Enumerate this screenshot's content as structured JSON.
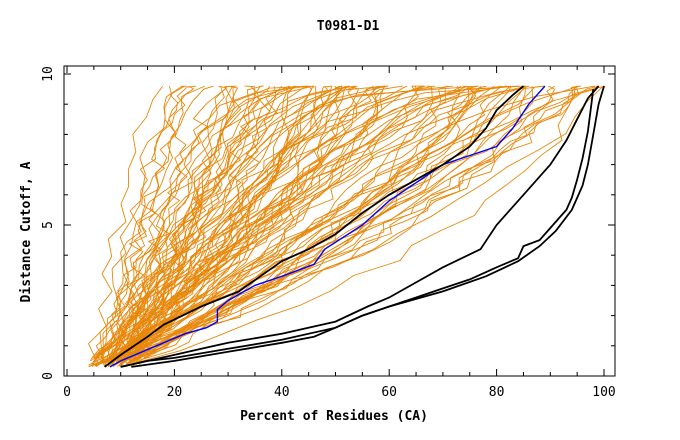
{
  "chart_data": {
    "type": "line",
    "title": "T0981-D1",
    "xlabel": "Percent of Residues (CA)",
    "ylabel": "Distance Cutoff, A",
    "xlim": [
      0,
      100
    ],
    "ylim": [
      0,
      10
    ],
    "xticks": [
      0,
      20,
      40,
      60,
      80,
      100
    ],
    "yticks": [
      0,
      5,
      10
    ],
    "grid": false,
    "legend": "none",
    "colors": {
      "background_series": "#e8880c",
      "highlight_black": "#000000",
      "highlight_blue": "#0000ff",
      "axis": "#000000"
    },
    "series": [
      {
        "color": "#0000ff",
        "x": [
          8,
          10,
          14,
          18,
          22,
          26,
          28,
          28,
          30,
          35,
          40,
          46,
          48,
          55,
          60,
          65,
          70,
          75,
          80,
          83,
          86,
          89
        ],
        "y": [
          0.3,
          0.5,
          0.8,
          1.1,
          1.4,
          1.6,
          1.8,
          2.2,
          2.5,
          3.0,
          3.3,
          3.7,
          4.2,
          5.0,
          5.8,
          6.4,
          7.0,
          7.3,
          7.6,
          8.2,
          9.0,
          9.6
        ]
      },
      {
        "color": "#000000",
        "x": [
          7,
          10,
          15,
          18,
          25,
          32,
          36,
          40,
          45,
          50,
          55,
          60,
          65,
          70,
          75,
          78,
          80,
          83,
          85
        ],
        "y": [
          0.3,
          0.7,
          1.3,
          1.7,
          2.3,
          2.8,
          3.3,
          3.8,
          4.2,
          4.7,
          5.4,
          6.0,
          6.5,
          7.0,
          7.6,
          8.2,
          8.8,
          9.3,
          9.6
        ]
      },
      {
        "color": "#000000",
        "x": [
          10,
          15,
          20,
          25,
          30,
          40,
          50,
          56,
          60,
          65,
          70,
          77,
          80,
          85,
          90,
          93,
          95,
          97,
          99
        ],
        "y": [
          0.3,
          0.5,
          0.7,
          0.9,
          1.1,
          1.4,
          1.8,
          2.3,
          2.6,
          3.1,
          3.6,
          4.2,
          5.0,
          6.0,
          7.0,
          7.8,
          8.5,
          9.2,
          9.6
        ]
      },
      {
        "color": "#000000",
        "x": [
          10,
          15,
          20,
          30,
          40,
          50,
          55,
          60,
          65,
          70,
          75,
          80,
          84,
          85,
          88,
          90,
          92,
          93,
          94,
          95,
          96,
          97,
          98
        ],
        "y": [
          0.3,
          0.5,
          0.6,
          0.9,
          1.2,
          1.6,
          2.0,
          2.3,
          2.6,
          2.9,
          3.2,
          3.6,
          3.9,
          4.3,
          4.5,
          4.9,
          5.3,
          5.5,
          5.9,
          6.5,
          7.2,
          8.1,
          9.5
        ]
      },
      {
        "color": "#000000",
        "x": [
          12,
          20,
          30,
          40,
          46,
          50,
          55,
          60,
          70,
          78,
          84,
          88,
          91,
          94,
          96,
          97,
          98,
          99,
          100
        ],
        "y": [
          0.3,
          0.5,
          0.8,
          1.1,
          1.3,
          1.6,
          2.0,
          2.3,
          2.8,
          3.3,
          3.8,
          4.3,
          4.8,
          5.5,
          6.3,
          7.0,
          8.0,
          9.0,
          9.6
        ]
      }
    ]
  }
}
